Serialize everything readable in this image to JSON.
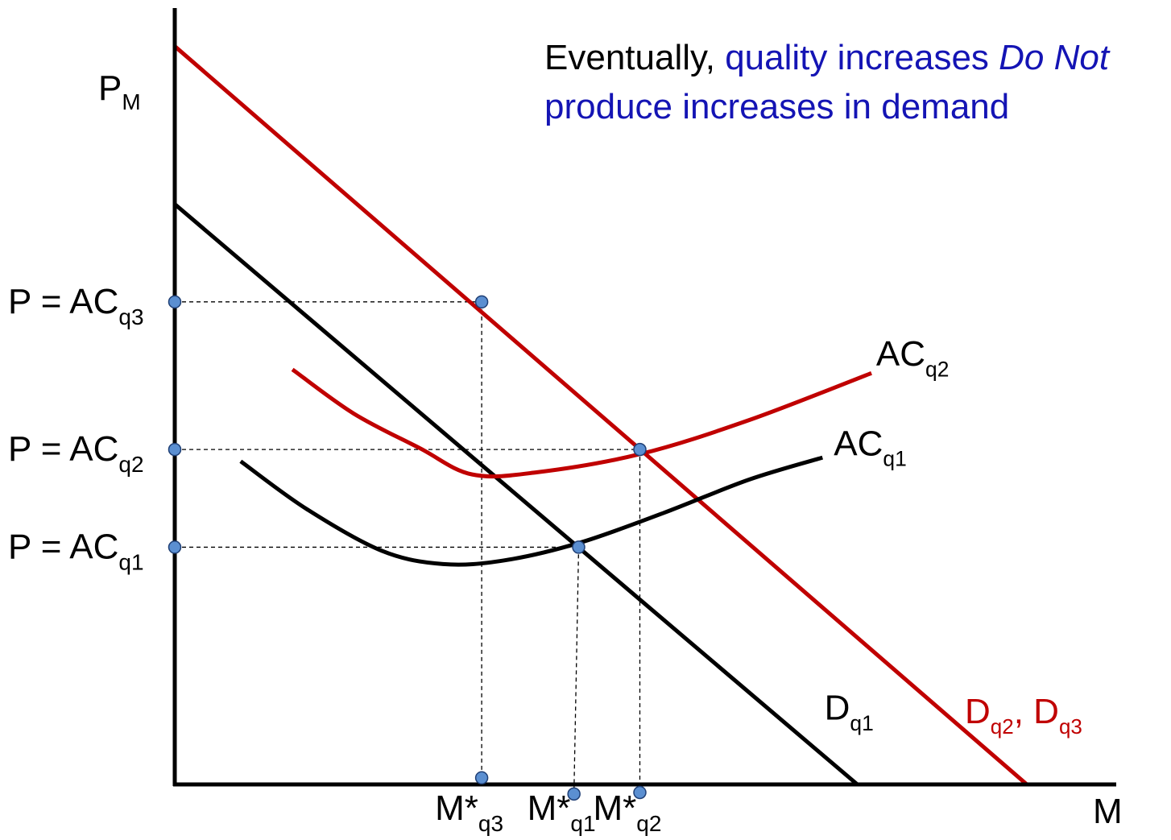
{
  "chart_data": {
    "type": "line",
    "title": {
      "part1": "Eventually, ",
      "part2": "quality increases ",
      "part3_italic": "Do Not",
      "line2": "produce increases in demand"
    },
    "ylabel": {
      "main": "P",
      "sub": "M"
    },
    "xlabel": "M",
    "xlim": [
      0,
      100
    ],
    "ylim": [
      0,
      100
    ],
    "grid": false,
    "colors": {
      "red": "#c00000",
      "black": "#000000",
      "blue_text": "#1414b4",
      "dot_fill": "#5b8fd1",
      "dot_stroke": "#1f3f75"
    },
    "series": [
      {
        "name": "Dq1",
        "color": "#000000",
        "kind": "line",
        "points": [
          [
            0,
            79
          ],
          [
            72.5,
            0
          ]
        ]
      },
      {
        "name": "Dq2, Dq3",
        "color": "#c00000",
        "kind": "line",
        "points": [
          [
            0,
            100.5
          ],
          [
            90.5,
            0
          ]
        ]
      },
      {
        "name": "ACq1",
        "color": "#000000",
        "kind": "curve",
        "points": [
          [
            7,
            44
          ],
          [
            14,
            37.5
          ],
          [
            22,
            31.8
          ],
          [
            28.5,
            30
          ],
          [
            35,
            30.5
          ],
          [
            43,
            32.9
          ],
          [
            52,
            37
          ],
          [
            61,
            41.5
          ],
          [
            68.8,
            44.5
          ]
        ]
      },
      {
        "name": "ACq2",
        "color": "#c00000",
        "kind": "curve",
        "points": [
          [
            12.5,
            56.5
          ],
          [
            19,
            50.5
          ],
          [
            26,
            45.8
          ],
          [
            31.6,
            42.2
          ],
          [
            38.5,
            42.5
          ],
          [
            49.5,
            45
          ],
          [
            61,
            49.6
          ],
          [
            74,
            56
          ]
        ]
      }
    ],
    "points": [
      {
        "name": "eq-q1",
        "x": 42.9,
        "y": 32.3
      },
      {
        "name": "eq-q2",
        "x": 49.4,
        "y": 45.6
      },
      {
        "name": "eq-q3",
        "x": 32.6,
        "y": 65.7
      },
      {
        "name": "axis-pq1",
        "x": 0,
        "y": 32.3
      },
      {
        "name": "axis-pq2",
        "x": 0,
        "y": 45.6
      },
      {
        "name": "axis-pq3",
        "x": 0,
        "y": 65.7
      },
      {
        "name": "axis-mq3",
        "x": 32.6,
        "y": 0.9
      },
      {
        "name": "axis-mq1",
        "x": 42.4,
        "y": -1.3
      },
      {
        "name": "axis-mq2",
        "x": 49.4,
        "y": -1.1
      }
    ],
    "guides": [
      {
        "from": [
          0,
          65.7
        ],
        "to": [
          32.6,
          65.7
        ]
      },
      {
        "from": [
          32.6,
          65.7
        ],
        "to": [
          32.6,
          0.9
        ]
      },
      {
        "from": [
          0,
          45.6
        ],
        "to": [
          49.4,
          45.6
        ]
      },
      {
        "from": [
          49.4,
          45.6
        ],
        "to": [
          49.4,
          -1.1
        ]
      },
      {
        "from": [
          0,
          32.3
        ],
        "to": [
          42.9,
          32.3
        ]
      },
      {
        "from": [
          42.9,
          32.3
        ],
        "to": [
          42.4,
          -1.3
        ]
      }
    ],
    "curve_labels": [
      {
        "name": "ACq2",
        "main": "AC",
        "sub": "q2",
        "color": "#000000",
        "at": [
          74.5,
          57
        ]
      },
      {
        "name": "ACq1",
        "main": "AC",
        "sub": "q1",
        "color": "#000000",
        "at": [
          70,
          44.8
        ]
      },
      {
        "name": "Dq1",
        "main": "D",
        "sub": "q1",
        "color": "#000000",
        "at": [
          69,
          8.8
        ]
      }
    ],
    "dq23_label": {
      "main1": "D",
      "sub1": "q2",
      "sep": ", ",
      "main2": "D",
      "sub2": "q3",
      "color": "#c00000"
    },
    "y_tick_labels": [
      {
        "name": "ACq3",
        "text": "P = AC",
        "sub": "q3",
        "y": 65.7
      },
      {
        "name": "ACq2",
        "text": "P = AC",
        "sub": "q2",
        "y": 45.6
      },
      {
        "name": "ACq1",
        "text": "P = AC",
        "sub": "q1",
        "y": 32.3
      }
    ],
    "x_tick_labels": [
      {
        "name": "Mq3",
        "text": "M*",
        "sub": "q3",
        "x": 32.6
      },
      {
        "name": "Mq1",
        "text": "M*",
        "sub": "q1",
        "x": 42.4
      },
      {
        "name": "Mq2",
        "text": "M*",
        "sub": "q2",
        "x": 49.4
      }
    ]
  }
}
